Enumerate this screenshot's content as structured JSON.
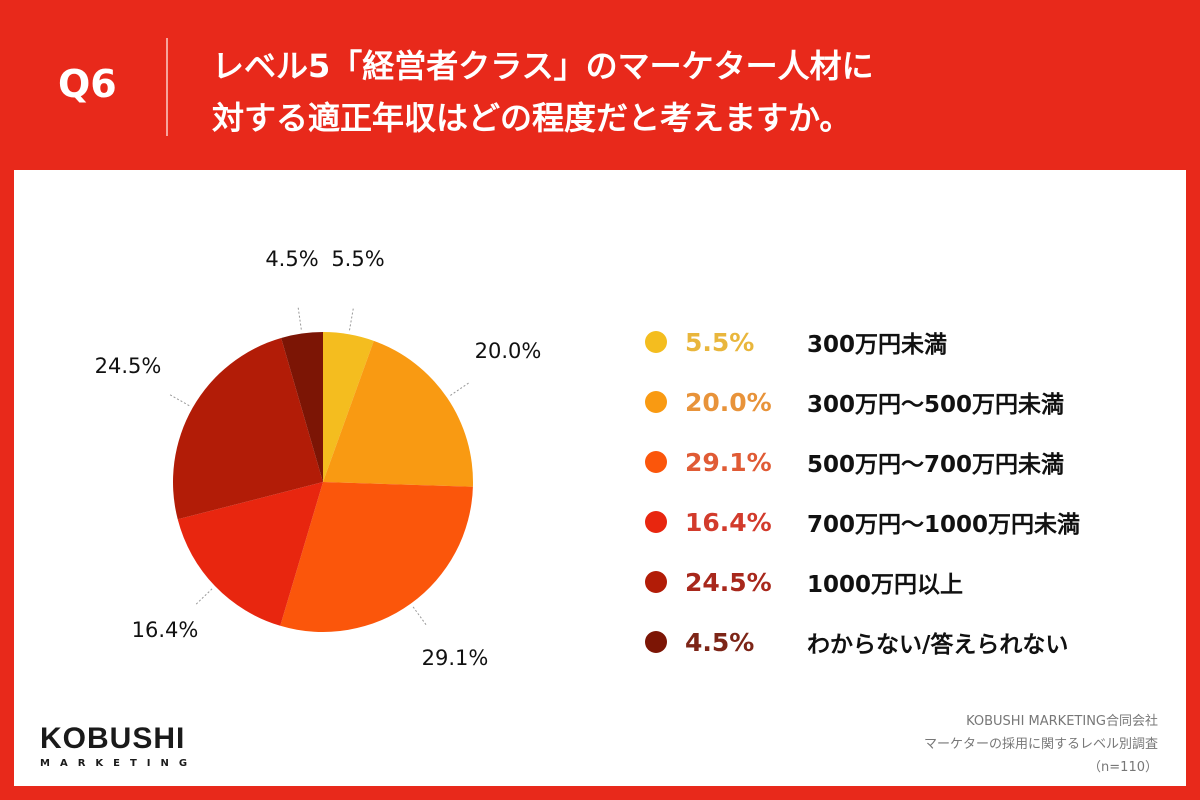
{
  "header": {
    "question": "Q6",
    "title_line1": "レベル5「経営者クラス」のマーケター人材に",
    "title_line2": "対する適正年収はどの程度だと考えますか。"
  },
  "chart_data": {
    "type": "pie",
    "start": "top",
    "direction": "clockwise",
    "categories": [
      "300万円未満",
      "300万円～500万円未満",
      "500万円～700万円未満",
      "700万円～1000万円未満",
      "1000万円以上",
      "わからない/答えられない"
    ],
    "values": [
      5.5,
      20.0,
      29.1,
      16.4,
      24.5,
      4.5
    ],
    "labels": [
      "5.5%",
      "20.0%",
      "29.1%",
      "16.4%",
      "24.5%",
      "4.5%"
    ],
    "colors": [
      "#f4bd1f",
      "#f99a12",
      "#fb560b",
      "#e8260f",
      "#b21c07",
      "#7c1505"
    ],
    "legend_text_colors": [
      "#e9b63c",
      "#e8933a",
      "#e05b35",
      "#d23b2c",
      "#a8281c",
      "#7d2517"
    ],
    "legend_placement": "right"
  },
  "logo": {
    "name": "KOBUSHI",
    "sub": "MARKETING"
  },
  "source": {
    "line1": "KOBUSHI MARKETING合同会社",
    "line2": "マーケターの採用に関するレベル別調査",
    "line3": "（n=110）"
  }
}
